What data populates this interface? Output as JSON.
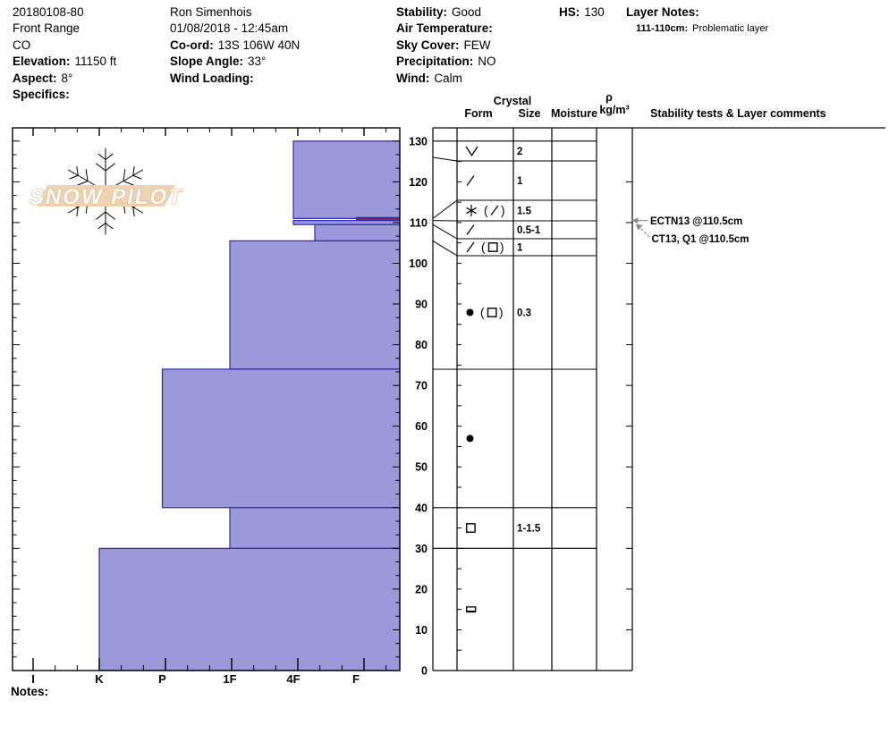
{
  "header": {
    "col1": {
      "pit_id": "20180108-80",
      "range": "Front Range",
      "state": "CO",
      "elevation_label": "Elevation:",
      "elevation": "11150 ft",
      "aspect_label": "Aspect:",
      "aspect": "8°",
      "specifics_label": "Specifics:"
    },
    "col2": {
      "observer": "Ron Simenhois",
      "datetime": "01/08/2018 - 12:45am",
      "coord_label": "Co-ord:",
      "coord": "13S 106W 40N",
      "slope_label": "Slope Angle:",
      "slope": "33°",
      "wind_loading_label": "Wind Loading:",
      "wind_loading": ""
    },
    "col3": {
      "stability_label": "Stability:",
      "stability": "Good",
      "air_temp_label": "Air Temperature:",
      "air_temp": "",
      "sky_label": "Sky Cover:",
      "sky": "FEW",
      "precip_label": "Precipitation:",
      "precip": "NO",
      "wind_label": "Wind:",
      "wind": "Calm"
    },
    "hs_label": "HS:",
    "hs": "130",
    "layer_notes_label": "Layer Notes:",
    "layer_notes": [
      {
        "range": "111-110cm:",
        "text": "Problematic layer"
      }
    ]
  },
  "table_headers": {
    "crystal": "Crystal",
    "form": "Form",
    "size": "Size",
    "moisture": "Moisture",
    "rho": "ρ",
    "rho_units": "kg/m³",
    "stability": "Stability tests & Layer comments"
  },
  "notes_label": "Notes:",
  "chart_data": {
    "type": "snow-profile",
    "title": "SnowPilot snow pit hardness profile",
    "watermark": "SNOW PILOT",
    "depth_axis": {
      "unit": "cm",
      "min": 0,
      "max": 130,
      "tick_interval": 10,
      "labels": [
        130,
        120,
        110,
        100,
        90,
        80,
        70,
        60,
        50,
        40,
        30,
        20,
        10,
        0
      ]
    },
    "hardness_axis": {
      "categories": [
        "I",
        "K",
        "P",
        "1F",
        "4F",
        "F"
      ]
    },
    "hs_cm": 130,
    "layers": [
      {
        "top_cm": 130,
        "bottom_cm": 126,
        "hardness": "4F",
        "form_text": "∨",
        "form_tokens": [
          "V"
        ],
        "size_mm": "2",
        "problem": false
      },
      {
        "top_cm": 126,
        "bottom_cm": 111,
        "hardness": "4F",
        "form_text": "/",
        "form_tokens": [
          "slash"
        ],
        "size_mm": "1",
        "problem": false
      },
      {
        "top_cm": 111,
        "bottom_cm": 110.5,
        "hardness": "F",
        "form_text": "* ( / )",
        "form_tokens": [
          "star",
          "(slash)"
        ],
        "size_mm": "1.5",
        "problem": true
      },
      {
        "top_cm": 110.5,
        "bottom_cm": 109.5,
        "hardness": "4F",
        "form_text": "/",
        "form_tokens": [
          "slash"
        ],
        "size_mm": "0.5-1",
        "problem": false
      },
      {
        "top_cm": 109.5,
        "bottom_cm": 105.5,
        "hardness": "4F+",
        "form_text": "/ (□)",
        "form_tokens": [
          "slash",
          "(sq)"
        ],
        "size_mm": "1",
        "problem": false
      },
      {
        "top_cm": 105.5,
        "bottom_cm": 74,
        "hardness": "1F",
        "form_text": "● (□)",
        "form_tokens": [
          "dot",
          "(sq)"
        ],
        "size_mm": "0.3",
        "problem": false
      },
      {
        "top_cm": 74,
        "bottom_cm": 40,
        "hardness": "P",
        "form_text": "●",
        "form_tokens": [
          "dot"
        ],
        "size_mm": "",
        "problem": false
      },
      {
        "top_cm": 40,
        "bottom_cm": 30,
        "hardness": "1F",
        "form_text": "□",
        "form_tokens": [
          "sq"
        ],
        "size_mm": "1-1.5",
        "problem": false
      },
      {
        "top_cm": 30,
        "bottom_cm": 0,
        "hardness": "K",
        "form_text": "▭",
        "form_tokens": [
          "crust"
        ],
        "size_mm": "",
        "problem": false
      }
    ],
    "tests": [
      {
        "label": "ECTN13 @110.5cm",
        "depth_cm": 110.5
      },
      {
        "label": "CT13, Q1 @110.5cm",
        "depth_cm": 110.5
      }
    ],
    "colors": {
      "layer_fill": "#9b99d9",
      "layer_stroke": "#2a28b0",
      "problem_fill": "#a81e2e",
      "problem_stroke": "#6b1020",
      "annotation_gray": "#8a8a8a",
      "logo_band": "#eed3b1",
      "logo_flake": "#c9d4e3",
      "logo_text_stroke": "#d8a97a"
    }
  }
}
